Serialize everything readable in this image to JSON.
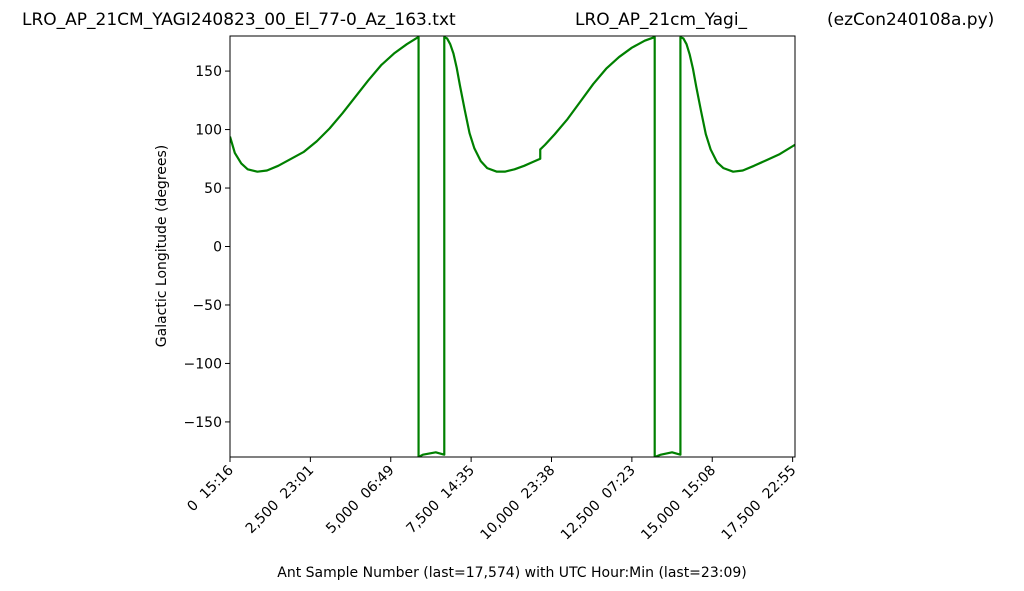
{
  "chart_data": {
    "type": "line",
    "title_left": "LRO_AP_21CM_YAGI240823_00_El_77-0_Az_163.txt",
    "title_center": "LRO_AP_21cm_Yagi_",
    "title_right": "(ezCon240108a.py)",
    "xlabel": "Ant Sample Number (last=17,574) with UTC Hour:Min (last=23:09)",
    "ylabel": "Galactic Longitude (degrees)",
    "xlim": [
      0,
      17574
    ],
    "ylim": [
      -180,
      180
    ],
    "xticks": [
      {
        "x": 0,
        "label": "0  15:16"
      },
      {
        "x": 2500,
        "label": "2,500  23:01"
      },
      {
        "x": 5000,
        "label": "5,000  06:49"
      },
      {
        "x": 7500,
        "label": "7,500  14:35"
      },
      {
        "x": 10000,
        "label": "10,000  23:38"
      },
      {
        "x": 12500,
        "label": "12,500  07:23"
      },
      {
        "x": 15000,
        "label": "15,000  15:08"
      },
      {
        "x": 17500,
        "label": "17,500  22:55"
      }
    ],
    "yticks": [
      {
        "y": 150,
        "label": "150"
      },
      {
        "y": 100,
        "label": "100"
      },
      {
        "y": 50,
        "label": "50"
      },
      {
        "y": 0,
        "label": "0"
      },
      {
        "y": -50,
        "label": "−50"
      },
      {
        "y": -100,
        "label": "−100"
      },
      {
        "y": -150,
        "label": "−150"
      }
    ],
    "grid": false,
    "series": [
      {
        "color": "#008000",
        "points": [
          [
            0,
            94
          ],
          [
            150,
            80
          ],
          [
            350,
            71
          ],
          [
            550,
            66
          ],
          [
            850,
            64
          ],
          [
            1150,
            65
          ],
          [
            1500,
            69
          ],
          [
            1900,
            75
          ],
          [
            2300,
            81
          ],
          [
            2700,
            90
          ],
          [
            3100,
            101
          ],
          [
            3500,
            114
          ],
          [
            3900,
            128
          ],
          [
            4300,
            142
          ],
          [
            4700,
            155
          ],
          [
            5100,
            165
          ],
          [
            5500,
            173
          ],
          [
            5850,
            179
          ],
          [
            5865,
            179
          ],
          [
            5865,
            -180
          ],
          [
            6000,
            -178
          ],
          [
            6400,
            -176
          ],
          [
            6665,
            -178
          ],
          [
            6665,
            179
          ],
          [
            6750,
            178
          ],
          [
            6850,
            173
          ],
          [
            6950,
            165
          ],
          [
            7050,
            153
          ],
          [
            7150,
            138
          ],
          [
            7300,
            117
          ],
          [
            7450,
            97
          ],
          [
            7600,
            84
          ],
          [
            7800,
            73
          ],
          [
            8000,
            67
          ],
          [
            8300,
            64
          ],
          [
            8550,
            64
          ],
          [
            8850,
            66
          ],
          [
            9150,
            69
          ],
          [
            9400,
            72
          ],
          [
            9650,
            75
          ],
          [
            9650,
            83
          ],
          [
            9800,
            87
          ],
          [
            10100,
            96
          ],
          [
            10500,
            109
          ],
          [
            10900,
            124
          ],
          [
            11300,
            139
          ],
          [
            11700,
            152
          ],
          [
            12100,
            162
          ],
          [
            12500,
            170
          ],
          [
            12900,
            176
          ],
          [
            13200,
            179
          ],
          [
            13210,
            179
          ],
          [
            13210,
            -180
          ],
          [
            13400,
            -178
          ],
          [
            13750,
            -176
          ],
          [
            14010,
            -178
          ],
          [
            14010,
            179
          ],
          [
            14100,
            178
          ],
          [
            14200,
            173
          ],
          [
            14300,
            164
          ],
          [
            14400,
            152
          ],
          [
            14500,
            137
          ],
          [
            14650,
            116
          ],
          [
            14800,
            96
          ],
          [
            14950,
            83
          ],
          [
            15150,
            72
          ],
          [
            15350,
            67
          ],
          [
            15650,
            64
          ],
          [
            15950,
            65
          ],
          [
            16300,
            69
          ],
          [
            16700,
            74
          ],
          [
            17100,
            79
          ],
          [
            17574,
            87
          ]
        ]
      }
    ]
  }
}
